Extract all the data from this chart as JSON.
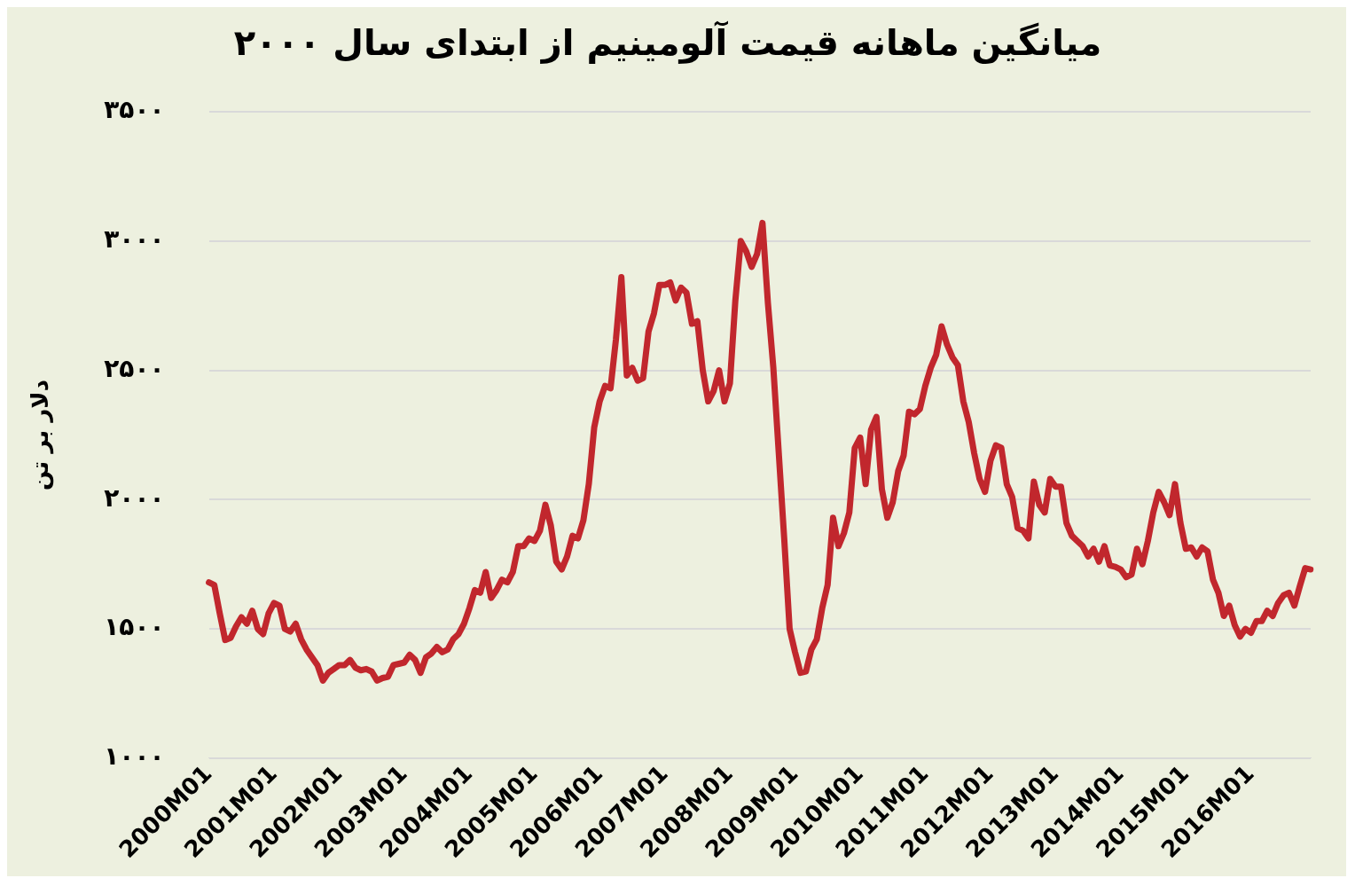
{
  "chart_data": {
    "type": "line",
    "title": "میانگین ماهانه قیمت آلومینیم از ابتدای سال ۲۰۰۰",
    "ylabel": "دلار بر تن",
    "categories": [
      "2000M01",
      null,
      null,
      null,
      null,
      null,
      null,
      null,
      null,
      null,
      null,
      null,
      "2001M01",
      null,
      null,
      null,
      null,
      null,
      null,
      null,
      null,
      null,
      null,
      null,
      "2002M01",
      null,
      null,
      null,
      null,
      null,
      null,
      null,
      null,
      null,
      null,
      null,
      "2003M01",
      null,
      null,
      null,
      null,
      null,
      null,
      null,
      null,
      null,
      null,
      null,
      "2004M01",
      null,
      null,
      null,
      null,
      null,
      null,
      null,
      null,
      null,
      null,
      null,
      "2005M01",
      null,
      null,
      null,
      null,
      null,
      null,
      null,
      null,
      null,
      null,
      null,
      "2006M01",
      null,
      null,
      null,
      null,
      null,
      null,
      null,
      null,
      null,
      null,
      null,
      "2007M01",
      null,
      null,
      null,
      null,
      null,
      null,
      null,
      null,
      null,
      null,
      null,
      "2008M01",
      null,
      null,
      null,
      null,
      null,
      null,
      null,
      null,
      null,
      null,
      null,
      "2009M01",
      null,
      null,
      null,
      null,
      null,
      null,
      null,
      null,
      null,
      null,
      null,
      "2010M01",
      null,
      null,
      null,
      null,
      null,
      null,
      null,
      null,
      null,
      null,
      null,
      "2011M01",
      null,
      null,
      null,
      null,
      null,
      null,
      null,
      null,
      null,
      null,
      null,
      "2012M01",
      null,
      null,
      null,
      null,
      null,
      null,
      null,
      null,
      null,
      null,
      null,
      "2013M01",
      null,
      null,
      null,
      null,
      null,
      null,
      null,
      null,
      null,
      null,
      null,
      "2014M01",
      null,
      null,
      null,
      null,
      null,
      null,
      null,
      null,
      null,
      null,
      null,
      "2015M01",
      null,
      null,
      null,
      null,
      null,
      null,
      null,
      null,
      null,
      null,
      null,
      "2016M01",
      null,
      null,
      null,
      null,
      null,
      null,
      null,
      null,
      null,
      null,
      null
    ],
    "series": [
      {
        "color": "#c1272d",
        "values": [
          1680,
          1670,
          1560,
          1457,
          1465,
          1510,
          1545,
          1520,
          1570,
          1500,
          1480,
          1560,
          1600,
          1590,
          1500,
          1490,
          1520,
          1460,
          1420,
          1390,
          1360,
          1300,
          1330,
          1345,
          1360,
          1360,
          1380,
          1350,
          1340,
          1345,
          1335,
          1300,
          1310,
          1315,
          1360,
          1365,
          1370,
          1400,
          1380,
          1330,
          1390,
          1405,
          1430,
          1410,
          1420,
          1460,
          1480,
          1520,
          1580,
          1650,
          1640,
          1720,
          1620,
          1650,
          1690,
          1680,
          1720,
          1820,
          1820,
          1850,
          1840,
          1880,
          1980,
          1900,
          1760,
          1730,
          1780,
          1860,
          1850,
          1920,
          2060,
          2280,
          2380,
          2440,
          2430,
          2620,
          2860,
          2480,
          2510,
          2460,
          2470,
          2650,
          2720,
          2830,
          2830,
          2840,
          2770,
          2820,
          2800,
          2680,
          2690,
          2500,
          2380,
          2420,
          2500,
          2380,
          2450,
          2770,
          3000,
          2960,
          2900,
          2950,
          3070,
          2760,
          2510,
          2180,
          1850,
          1500,
          1410,
          1330,
          1335,
          1420,
          1460,
          1580,
          1670,
          1930,
          1820,
          1870,
          1950,
          2200,
          2240,
          2060,
          2270,
          2320,
          2040,
          1930,
          1990,
          2110,
          2170,
          2340,
          2330,
          2350,
          2440,
          2510,
          2560,
          2670,
          2600,
          2550,
          2520,
          2380,
          2300,
          2180,
          2080,
          2030,
          2150,
          2210,
          2200,
          2060,
          2010,
          1890,
          1880,
          1850,
          2070,
          1980,
          1950,
          2080,
          2050,
          2050,
          1910,
          1860,
          1840,
          1820,
          1780,
          1810,
          1760,
          1820,
          1745,
          1740,
          1730,
          1700,
          1710,
          1810,
          1750,
          1840,
          1950,
          2030,
          1990,
          1940,
          2060,
          1910,
          1810,
          1815,
          1780,
          1815,
          1800,
          1690,
          1640,
          1550,
          1590,
          1515,
          1470,
          1500,
          1485,
          1530,
          1530,
          1570,
          1550,
          1600,
          1630,
          1640,
          1590,
          1665,
          1735,
          1730
        ]
      }
    ],
    "ylim": [
      1000,
      3500
    ],
    "yticks": [
      {
        "value": 1000,
        "label": "۱۰۰۰"
      },
      {
        "value": 1500,
        "label": "۱۵۰۰"
      },
      {
        "value": 2000,
        "label": "۲۰۰۰"
      },
      {
        "value": 2500,
        "label": "۲۵۰۰"
      },
      {
        "value": 3000,
        "label": "۳۰۰۰"
      },
      {
        "value": 3500,
        "label": "۳۵۰۰"
      }
    ],
    "grid": "y",
    "legend": false,
    "marker": "none",
    "line_style": "solid"
  }
}
